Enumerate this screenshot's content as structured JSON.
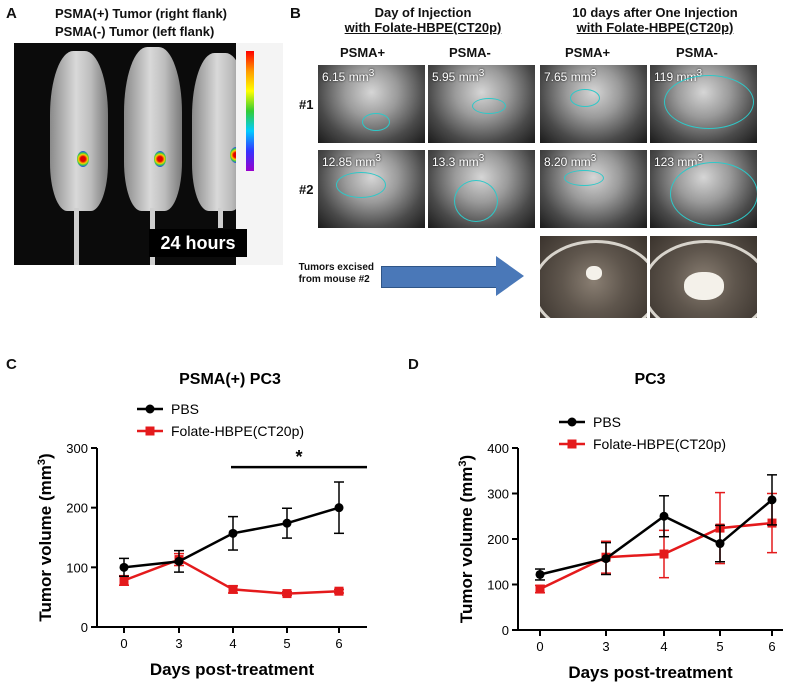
{
  "panel_a": {
    "label": "A",
    "line1": "PSMA(+) Tumor (right flank)",
    "line2": "PSMA(-)  Tumor (left flank)",
    "time_label": "24 hours"
  },
  "panel_b": {
    "label": "B",
    "header_left_line1": "Day of Injection",
    "header_left_line2": "with Folate-HBPE(CT20p)",
    "header_right_line1": "10 days after One Injection",
    "header_right_line2": "with Folate-HBPE(CT20p)",
    "col_labels": [
      "PSMA+",
      "PSMA-",
      "PSMA+",
      "PSMA-"
    ],
    "row_labels": [
      "#1",
      "#2"
    ],
    "volumes": {
      "r1c1": "6.15 mm",
      "r1c2": "5.95 mm",
      "r1c3": "7.65 mm",
      "r1c4": "119 mm",
      "r2c1": "12.85 mm",
      "r2c2": "13.3 mm",
      "r2c3": "8.20 mm",
      "r2c4": "123 mm"
    },
    "cube": "3",
    "excised_line1": "Tumors excised",
    "excised_line2": "from mouse #2"
  },
  "chart_data": [
    {
      "panel": "C",
      "type": "line",
      "title": "PSMA(+) PC3",
      "xlabel": "Days post-treatment",
      "ylabel": "Tumor volume (mm",
      "ylabel_sup": "3",
      "ylabel_end": ")",
      "ylim": [
        0,
        300
      ],
      "yticks": [
        0,
        100,
        200,
        300
      ],
      "x": [
        0,
        3,
        4,
        5,
        6
      ],
      "significance": "*",
      "series": [
        {
          "name": "PBS",
          "color": "#000000",
          "values": [
            100,
            110,
            157,
            174,
            200
          ],
          "errors": [
            15,
            18,
            28,
            25,
            43
          ]
        },
        {
          "name": "Folate-HBPE(CT20p)",
          "color": "#e41a1c",
          "values": [
            78,
            113,
            63,
            56,
            60
          ],
          "errors": [
            8,
            10,
            6,
            3,
            3
          ]
        }
      ]
    },
    {
      "panel": "D",
      "type": "line",
      "title": "PC3",
      "xlabel": "Days post-treatment",
      "ylabel": "Tumor volume (mm",
      "ylabel_sup": "3",
      "ylabel_end": ")",
      "ylim": [
        0,
        400
      ],
      "yticks": [
        0,
        100,
        200,
        300,
        400
      ],
      "x": [
        0,
        3,
        4,
        5,
        6
      ],
      "series": [
        {
          "name": "PBS",
          "color": "#000000",
          "values": [
            122,
            157,
            250,
            190,
            286
          ],
          "errors": [
            12,
            35,
            45,
            40,
            55
          ]
        },
        {
          "name": "Folate-HBPE(CT20p)",
          "color": "#e41a1c",
          "values": [
            90,
            160,
            167,
            224,
            235
          ],
          "errors": [
            8,
            35,
            52,
            78,
            65
          ]
        }
      ]
    }
  ]
}
